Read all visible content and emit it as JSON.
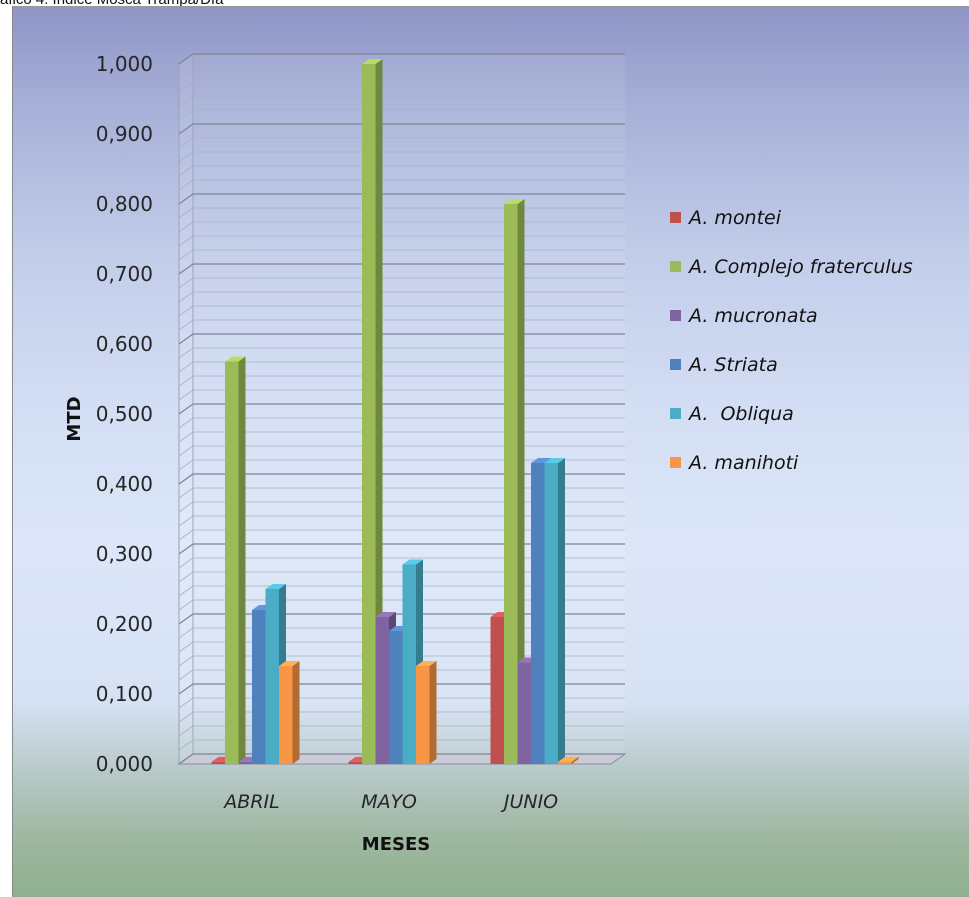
{
  "caption": "áfico 4. Índice Mosca Trampa/Día",
  "chart_data": {
    "type": "bar",
    "categories": [
      "ABRIL",
      "MAYO",
      "JUNIO"
    ],
    "xlabel": "MESES",
    "ylabel": "MTD",
    "ylim": [
      0,
      1.0
    ],
    "yticks": [
      "0,000",
      "0,100",
      "0,200",
      "0,300",
      "0,400",
      "0,500",
      "0,600",
      "0,700",
      "0,800",
      "0,900",
      "1,000"
    ],
    "legend_position": "right",
    "grid": true,
    "series": [
      {
        "name": "A. montei",
        "values": [
          0.0,
          0.0,
          0.21
        ],
        "color": "#c0504d"
      },
      {
        "name": "A. Complejo fraterculus",
        "values": [
          0.575,
          1.0,
          0.8
        ],
        "color": "#9bbb59"
      },
      {
        "name": "A. mucronata",
        "values": [
          0.0,
          0.21,
          0.145
        ],
        "color": "#8064a2"
      },
      {
        "name": "A. Striata",
        "values": [
          0.22,
          0.19,
          0.43
        ],
        "color": "#4f81bd"
      },
      {
        "name": "A.  Obliqua",
        "values": [
          0.25,
          0.285,
          0.43
        ],
        "color": "#4bacc6"
      },
      {
        "name": "A. manihoti",
        "values": [
          0.14,
          0.14,
          0.0
        ],
        "color": "#f79646"
      }
    ]
  }
}
